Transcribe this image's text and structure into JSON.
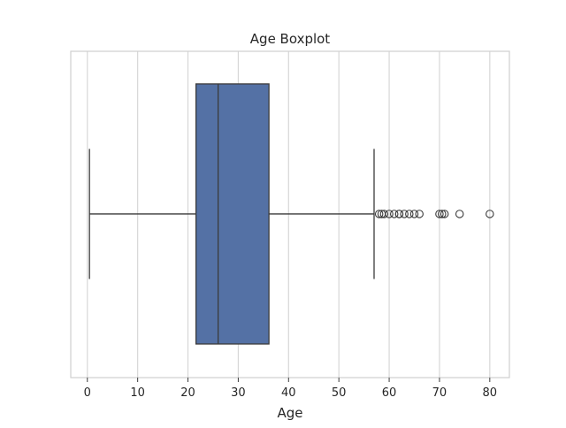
{
  "chart_data": {
    "type": "boxplot",
    "title": "Age Boxplot",
    "xlabel": "Age",
    "ylabel": "",
    "orientation": "horizontal",
    "xlim": [
      -3.3,
      83.9
    ],
    "x_ticks": [
      0,
      10,
      20,
      30,
      40,
      50,
      60,
      70,
      80
    ],
    "x_tick_labels": [
      "0",
      "10",
      "20",
      "30",
      "40",
      "50",
      "60",
      "70",
      "80"
    ],
    "grid": true,
    "box": {
      "q1": 21.6,
      "median": 26.0,
      "q3": 36.1,
      "whisker_low": 0.42,
      "whisker_high": 57.0
    },
    "outliers": [
      58,
      58.5,
      59,
      60,
      61,
      62,
      62,
      63,
      64,
      65,
      66,
      70,
      70.5,
      71,
      74,
      80
    ],
    "colors": {
      "box_fill": "#5471a5",
      "line": "#3b3b3b",
      "grid": "#d7d7d7",
      "frame": "#cfcfcf"
    }
  }
}
